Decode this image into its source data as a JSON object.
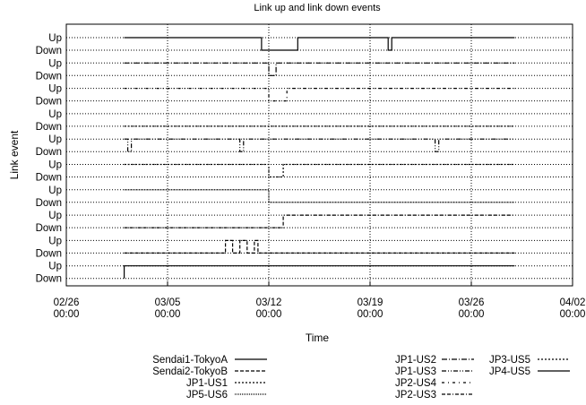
{
  "chart_data": {
    "type": "line",
    "title": "Link up and link down events",
    "xlabel": "Time",
    "ylabel": "Link event",
    "x_ticks": [
      "02/26\n00:00",
      "03/05\n00:00",
      "03/12\n00:00",
      "03/19\n00:00",
      "03/26\n00:00",
      "04/02\n00:00"
    ],
    "xlim": [
      "02/26 00:00",
      "04/02 00:00"
    ],
    "state_labels": [
      "Up",
      "Down"
    ],
    "grid": true,
    "legend_position": "bottom",
    "series": [
      {
        "name": "Sendai1-TokyoA",
        "row": 9,
        "points": [
          [
            "03/02 00:00",
            "Down"
          ],
          [
            "03/02 00:00",
            "Up"
          ],
          [
            "03/29 00:00",
            "Up"
          ]
        ]
      },
      {
        "name": "Sendai2-TokyoB",
        "row": 8,
        "points": [
          [
            "03/02 00:00",
            "Down"
          ],
          [
            "03/09 00:00",
            "Down"
          ],
          [
            "03/09 00:00",
            "Up"
          ],
          [
            "03/09 12:00",
            "Up"
          ],
          [
            "03/09 12:00",
            "Down"
          ],
          [
            "03/10 00:00",
            "Down"
          ],
          [
            "03/10 00:00",
            "Up"
          ],
          [
            "03/10 12:00",
            "Up"
          ],
          [
            "03/10 12:00",
            "Down"
          ],
          [
            "03/11 00:00",
            "Down"
          ],
          [
            "03/11 00:00",
            "Up"
          ],
          [
            "03/11 06:00",
            "Up"
          ],
          [
            "03/11 06:00",
            "Down"
          ],
          [
            "03/29 00:00",
            "Down"
          ]
        ]
      },
      {
        "name": "JP2-US3",
        "row": 7,
        "points": [
          [
            "03/02 00:00",
            "Down"
          ],
          [
            "03/13 00:00",
            "Down"
          ],
          [
            "03/13 00:00",
            "Up"
          ],
          [
            "03/29 00:00",
            "Up"
          ]
        ]
      },
      {
        "name": "JP5-US6",
        "row": 6,
        "points": [
          [
            "03/02 00:00",
            "Up"
          ],
          [
            "03/12 00:00",
            "Up"
          ],
          [
            "03/12 00:00",
            "Down"
          ],
          [
            "03/29 00:00",
            "Down"
          ]
        ]
      },
      {
        "name": "JP1-US1",
        "row": 5,
        "points": [
          [
            "03/02 00:00",
            "Up"
          ],
          [
            "03/12 00:00",
            "Up"
          ],
          [
            "03/12 00:00",
            "Down"
          ],
          [
            "03/13 00:00",
            "Down"
          ],
          [
            "03/13 00:00",
            "Up"
          ],
          [
            "03/29 00:00",
            "Up"
          ]
        ]
      },
      {
        "name": "JP1-US3",
        "row": 4,
        "points": [
          [
            "03/02 00:00",
            "Up"
          ],
          [
            "03/02 06:00",
            "Up"
          ],
          [
            "03/02 06:00",
            "Down"
          ],
          [
            "03/02 12:00",
            "Down"
          ],
          [
            "03/02 12:00",
            "Up"
          ],
          [
            "03/10 00:00",
            "Up"
          ],
          [
            "03/10 00:00",
            "Down"
          ],
          [
            "03/10 06:00",
            "Down"
          ],
          [
            "03/10 06:00",
            "Up"
          ],
          [
            "03/23 12:00",
            "Up"
          ],
          [
            "03/23 12:00",
            "Down"
          ],
          [
            "03/23 18:00",
            "Down"
          ],
          [
            "03/23 18:00",
            "Up"
          ],
          [
            "03/29 00:00",
            "Up"
          ]
        ]
      },
      {
        "name": "JP3-US5",
        "row": 3,
        "points": [
          [
            "03/02 00:00",
            "Down"
          ],
          [
            "03/29 00:00",
            "Down"
          ]
        ]
      },
      {
        "name": "JP2-US4",
        "row": 2,
        "points": [
          [
            "03/02 00:00",
            "Up"
          ],
          [
            "03/12 00:00",
            "Up"
          ],
          [
            "03/12 00:00",
            "Down"
          ],
          [
            "03/13 06:00",
            "Down"
          ],
          [
            "03/13 06:00",
            "Up"
          ],
          [
            "03/29 00:00",
            "Up"
          ]
        ]
      },
      {
        "name": "JP1-US2",
        "row": 1,
        "points": [
          [
            "03/02 00:00",
            "Up"
          ],
          [
            "03/12 00:00",
            "Up"
          ],
          [
            "03/12 00:00",
            "Down"
          ],
          [
            "03/12 12:00",
            "Down"
          ],
          [
            "03/12 12:00",
            "Up"
          ],
          [
            "03/29 00:00",
            "Up"
          ]
        ]
      },
      {
        "name": "JP4-US5",
        "row": 0,
        "points": [
          [
            "03/02 00:00",
            "Up"
          ],
          [
            "03/11 12:00",
            "Up"
          ],
          [
            "03/11 12:00",
            "Down"
          ],
          [
            "03/14 00:00",
            "Down"
          ],
          [
            "03/14 00:00",
            "Up"
          ],
          [
            "03/20 06:00",
            "Up"
          ],
          [
            "03/20 06:00",
            "Down"
          ],
          [
            "03/20 12:00",
            "Down"
          ],
          [
            "03/20 12:00",
            "Up"
          ],
          [
            "03/29 00:00",
            "Up"
          ]
        ]
      }
    ],
    "legend": [
      {
        "name": "Sendai1-TokyoA",
        "dash": "solid"
      },
      {
        "name": "Sendai2-TokyoB",
        "dash": "dashed"
      },
      {
        "name": "JP1-US1",
        "dash": "dotted"
      },
      {
        "name": "JP5-US6",
        "dash": "dense-dotted"
      },
      {
        "name": "JP1-US2",
        "dash": "dash-dot"
      },
      {
        "name": "JP1-US3",
        "dash": "dash-dot-dot"
      },
      {
        "name": "JP2-US4",
        "dash": "dash-dot-sparse"
      },
      {
        "name": "JP2-US3",
        "dash": "dash-dash-dot"
      },
      {
        "name": "JP3-US5",
        "dash": "dotted"
      },
      {
        "name": "JP4-US5",
        "dash": "solid"
      }
    ]
  }
}
